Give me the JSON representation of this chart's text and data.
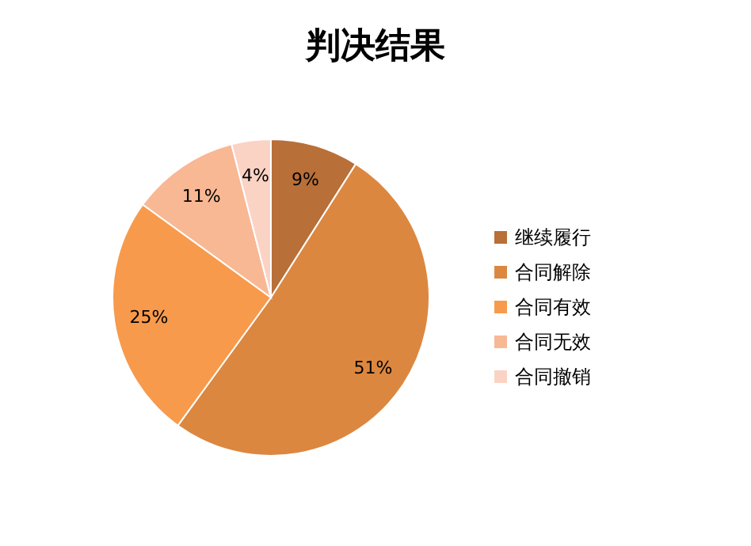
{
  "chart_data": {
    "type": "pie",
    "title": "判决结果",
    "categories": [
      "继续履行",
      "合同解除",
      "合同有效",
      "合同无效",
      "合同撤销"
    ],
    "values": [
      9,
      51,
      25,
      11,
      4
    ],
    "value_labels": [
      "9%",
      "51%",
      "25%",
      "11%",
      "4%"
    ],
    "colors": [
      "#b86f38",
      "#dc8740",
      "#f79a4c",
      "#f8b894",
      "#fbd3c4"
    ],
    "legend": "right"
  }
}
